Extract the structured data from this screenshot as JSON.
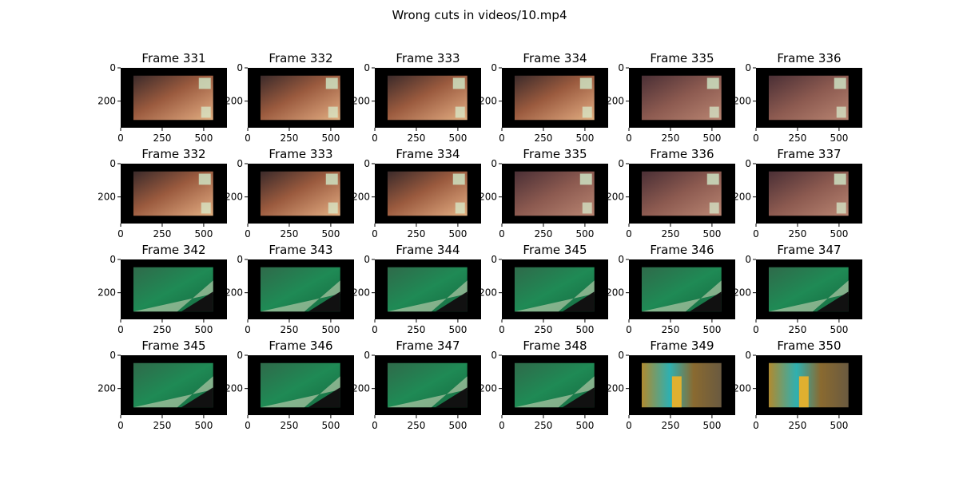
{
  "suptitle": "Wrong cuts in videos/10.mp4",
  "chart_data": {
    "type": "image-grid",
    "rows": 4,
    "cols": 6,
    "xticks": [
      0,
      250,
      500
    ],
    "yticks": [
      0,
      200
    ],
    "frames": [
      {
        "label": "Frame 331",
        "scene": "face-hand"
      },
      {
        "label": "Frame 332",
        "scene": "face-hand"
      },
      {
        "label": "Frame 333",
        "scene": "face-hand"
      },
      {
        "label": "Frame 334",
        "scene": "face-hand"
      },
      {
        "label": "Frame 335",
        "scene": "hand"
      },
      {
        "label": "Frame 336",
        "scene": "hand"
      },
      {
        "label": "Frame 332",
        "scene": "face-hand"
      },
      {
        "label": "Frame 333",
        "scene": "face-hand"
      },
      {
        "label": "Frame 334",
        "scene": "face-hand"
      },
      {
        "label": "Frame 335",
        "scene": "hand"
      },
      {
        "label": "Frame 336",
        "scene": "hand"
      },
      {
        "label": "Frame 337",
        "scene": "hand"
      },
      {
        "label": "Frame 342",
        "scene": "circuit"
      },
      {
        "label": "Frame 343",
        "scene": "circuit"
      },
      {
        "label": "Frame 344",
        "scene": "circuit"
      },
      {
        "label": "Frame 345",
        "scene": "circuit"
      },
      {
        "label": "Frame 346",
        "scene": "circuit"
      },
      {
        "label": "Frame 347",
        "scene": "circuit"
      },
      {
        "label": "Frame 345",
        "scene": "circuit"
      },
      {
        "label": "Frame 346",
        "scene": "circuit"
      },
      {
        "label": "Frame 347",
        "scene": "circuit"
      },
      {
        "label": "Frame 348",
        "scene": "circuit"
      },
      {
        "label": "Frame 349",
        "scene": "street"
      },
      {
        "label": "Frame 350",
        "scene": "street"
      }
    ]
  },
  "colors": {
    "frame_border": "#000000",
    "face_hand_bg": "#6b3a2a",
    "hand_bg": "#5a3a3a",
    "circuit_bg": "#1f7a4f",
    "street_bg": "#8a7a3a"
  }
}
